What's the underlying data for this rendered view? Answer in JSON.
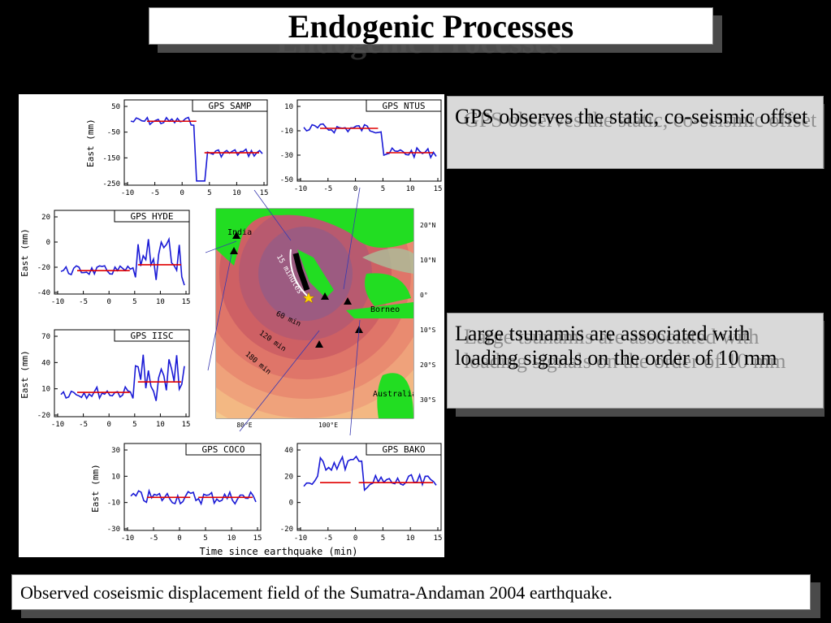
{
  "slide": {
    "title": "Endogenic Processes",
    "bullet1": "GPS observes the static, co-seismic offset",
    "bullet2": "Large tsunamis are associated with loading signals on the order of 10 mm",
    "caption": "Observed coseismic displacement field of the Sumatra-Andaman 2004 earthquake."
  },
  "figure": {
    "x_axis_label": "Time since earthquake (min)",
    "y_axis_label": "East (mm)",
    "x_ticks": [
      "-10",
      "-5",
      "0",
      "5",
      "10",
      "15"
    ],
    "panels": [
      {
        "name": "GPS SAMP",
        "y_ticks": [
          "50",
          "-50",
          "-150",
          "-250"
        ]
      },
      {
        "name": "GPS NTUS",
        "y_ticks": [
          "10",
          "-10",
          "-30",
          "-50"
        ]
      },
      {
        "name": "GPS HYDE",
        "y_ticks": [
          "20",
          "0",
          "-20",
          "-40"
        ]
      },
      {
        "name": "GPS IISC",
        "y_ticks": [
          "70",
          "40",
          "10",
          "-20"
        ]
      },
      {
        "name": "GPS COCO",
        "y_ticks": [
          "30",
          "10",
          "-10",
          "-30"
        ]
      },
      {
        "name": "GPS BAKO",
        "y_ticks": [
          "40",
          "20",
          "0",
          "-20"
        ]
      }
    ],
    "map": {
      "labels": [
        "India",
        "Borneo",
        "Australia",
        "15 minutes",
        "60 min",
        "120 min",
        "180 min"
      ],
      "lat_ticks": [
        "20°N",
        "10°N",
        "0°",
        "10°S",
        "20°S",
        "30°S"
      ],
      "lon_ticks": [
        "80°E",
        "100°E"
      ]
    }
  },
  "colors": {
    "background": "#000000",
    "textbox": "#d9d9d9",
    "series": "#1a1ad6",
    "offset": "#e00000",
    "land": "#22dd22"
  }
}
